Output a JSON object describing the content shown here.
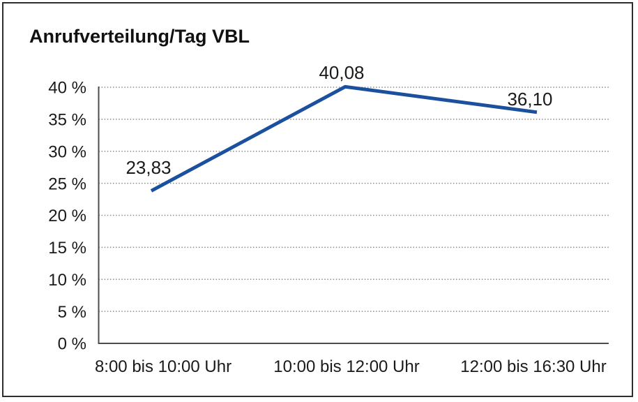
{
  "chart_data": {
    "type": "line",
    "title": "Anrufverteilung/Tag VBL",
    "categories": [
      "8:00 bis 10:00 Uhr",
      "10:00 bis 12:00 Uhr",
      "12:00 bis 16:30 Uhr"
    ],
    "series": [
      {
        "name": "Anrufverteilung/Tag VBL",
        "values": [
          23.83,
          40.08,
          36.1
        ],
        "data_labels": [
          "23,83",
          "40,08",
          "36,10"
        ]
      }
    ],
    "xlabel": "",
    "ylabel": "",
    "ylim": [
      0,
      40
    ],
    "y_ticks": {
      "values": [
        0,
        5,
        10,
        15,
        20,
        25,
        30,
        35,
        40
      ],
      "labels": [
        "0 %",
        "5 %",
        "10 %",
        "15 %",
        "20 %",
        "25 %",
        "30 %",
        "35 %",
        "40 %"
      ]
    },
    "grid": "horizontal-dotted",
    "legend": "none",
    "colors": {
      "line": "#1a509e",
      "axis": "#4d4d4d",
      "grid": "#8a8a8a",
      "text": "#1a1a1a",
      "background": "#ffffff",
      "frame_border": "#2e2e2e"
    }
  }
}
